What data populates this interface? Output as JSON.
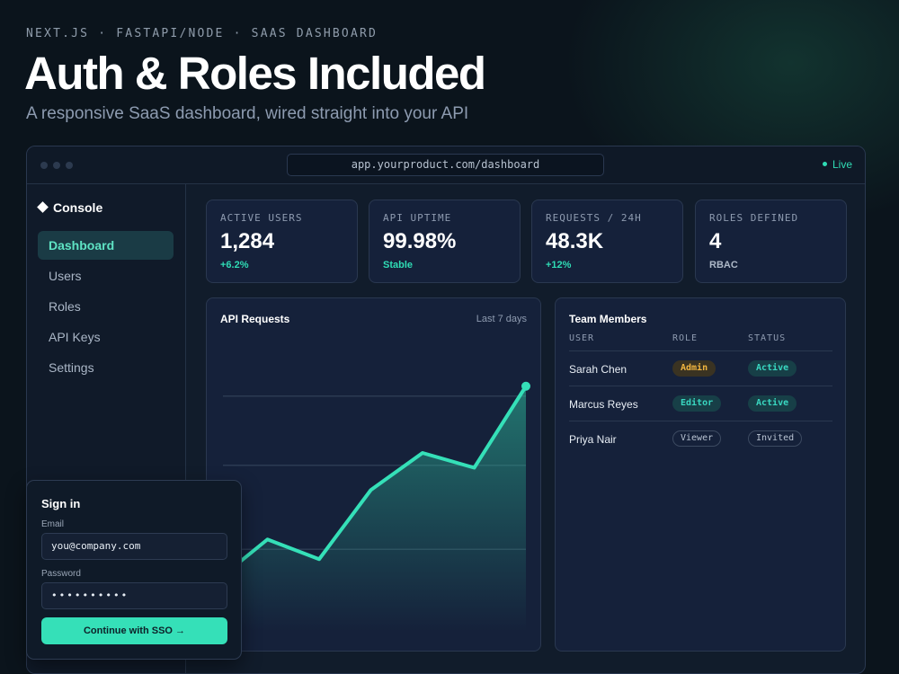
{
  "hero": {
    "eyebrow": "NEXT.JS · FASTAPI/NODE · SAAS DASHBOARD",
    "title": "Auth & Roles Included",
    "subtitle": "A responsive SaaS dashboard, wired straight into your API"
  },
  "browser": {
    "url": "app.yourproduct.com/dashboard",
    "status": "Live",
    "status_color": "#2fdcb5"
  },
  "sidebar": {
    "brand": "Console",
    "items": [
      {
        "label": "Dashboard",
        "active": true
      },
      {
        "label": "Users"
      },
      {
        "label": "Roles"
      },
      {
        "label": "API Keys"
      },
      {
        "label": "Settings"
      }
    ]
  },
  "stats": [
    {
      "label": "ACTIVE USERS",
      "value": "1,284",
      "sub": "+6.2%"
    },
    {
      "label": "API UPTIME",
      "value": "99.98%",
      "sub": "Stable"
    },
    {
      "label": "REQUESTS / 24H",
      "value": "48.3K",
      "sub": "+12%"
    },
    {
      "label": "ROLES DEFINED",
      "value": "4",
      "sub": "RBAC"
    }
  ],
  "chart_panel": {
    "title": "API Requests",
    "meta": "Last 7 days"
  },
  "chart_data": {
    "type": "area",
    "x": [
      1,
      2,
      3,
      4,
      5,
      6,
      7
    ],
    "values": [
      0.2,
      0.37,
      0.29,
      0.57,
      0.72,
      0.66,
      0.99
    ],
    "xlabel": "",
    "ylabel": "",
    "ylim": [
      0,
      1
    ],
    "grid": true,
    "accent_color": "#35e0b8"
  },
  "team": {
    "title": "Team Members",
    "columns": [
      "USER",
      "ROLE",
      "STATUS"
    ],
    "rows": [
      {
        "user": "Sarah Chen",
        "role": "Admin",
        "status": "Active"
      },
      {
        "user": "Marcus Reyes",
        "role": "Editor",
        "status": "Active"
      },
      {
        "user": "Priya Nair",
        "role": "Viewer",
        "status": "Invited"
      }
    ]
  },
  "signin": {
    "title": "Sign in",
    "email_label": "Email",
    "email_value": "you@company.com",
    "password_label": "Password",
    "password_value": "••••••••••",
    "button": "Continue with SSO →"
  },
  "colors": {
    "accent": "#35e0b8",
    "admin": "#f2b640"
  }
}
